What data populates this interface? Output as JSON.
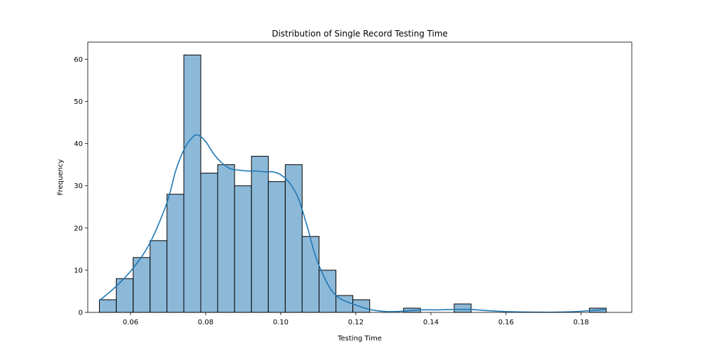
{
  "chart_data": {
    "type": "bar",
    "subtype": "histogram-with-kde",
    "title": "Distribution of Single Record Testing Time",
    "xlabel": "Testing Time",
    "ylabel": "Frequency",
    "xlim": [
      0.0486,
      0.1935
    ],
    "ylim": [
      0,
      64.05
    ],
    "x_ticks": [
      0.06,
      0.08,
      0.1,
      0.12,
      0.14,
      0.16,
      0.18
    ],
    "x_tick_labels": [
      "0.06",
      "0.08",
      "0.10",
      "0.12",
      "0.14",
      "0.16",
      "0.18"
    ],
    "y_ticks": [
      0,
      10,
      20,
      30,
      40,
      50,
      60
    ],
    "y_tick_labels": [
      "0",
      "10",
      "20",
      "30",
      "40",
      "50",
      "60"
    ],
    "grid": false,
    "bar_color": "#8db9d9",
    "bar_edge_color": "#000000",
    "kde_color": "#1f77b4",
    "bin_edges": [
      0.0517,
      0.0562,
      0.0607,
      0.0652,
      0.0697,
      0.0742,
      0.0787,
      0.0832,
      0.0877,
      0.0922,
      0.0967,
      0.1012,
      0.1057,
      0.1102,
      0.1147,
      0.1192,
      0.1237,
      0.1282,
      0.1327,
      0.1372,
      0.1417,
      0.1462,
      0.1507,
      0.1552,
      0.1597,
      0.1642,
      0.1687,
      0.1732,
      0.1777,
      0.1822,
      0.1867
    ],
    "counts": [
      3,
      8,
      13,
      17,
      28,
      61,
      33,
      35,
      30,
      37,
      31,
      35,
      18,
      10,
      4,
      3,
      0,
      0,
      1,
      0,
      0,
      2,
      0,
      0,
      0,
      0,
      0,
      0,
      0,
      1
    ],
    "kde": {
      "x": [
        0.0517,
        0.0562,
        0.0607,
        0.0652,
        0.0697,
        0.072,
        0.0742,
        0.0765,
        0.078,
        0.08,
        0.0822,
        0.0845,
        0.0867,
        0.089,
        0.0912,
        0.0935,
        0.0957,
        0.098,
        0.1002,
        0.1025,
        0.1047,
        0.107,
        0.1092,
        0.1115,
        0.1137,
        0.116,
        0.1192,
        0.1237,
        0.1282,
        0.1327,
        0.1372,
        0.1417,
        0.1462,
        0.1507,
        0.1552,
        0.1597,
        0.1642,
        0.1687,
        0.1732,
        0.1777,
        0.1822,
        0.1867
      ],
      "y": [
        2.8,
        6.2,
        10.5,
        16.5,
        26.0,
        33.5,
        38.5,
        41.5,
        42.0,
        40.5,
        37.5,
        35.3,
        34.0,
        33.7,
        33.5,
        33.5,
        33.3,
        33.3,
        32.5,
        30.5,
        27.0,
        20.5,
        13.5,
        8.5,
        5.0,
        3.2,
        2.0,
        0.7,
        0.2,
        0.3,
        0.6,
        0.6,
        0.7,
        0.7,
        0.4,
        0.2,
        0.1,
        0.05,
        0.05,
        0.15,
        0.4,
        0.7
      ]
    }
  }
}
